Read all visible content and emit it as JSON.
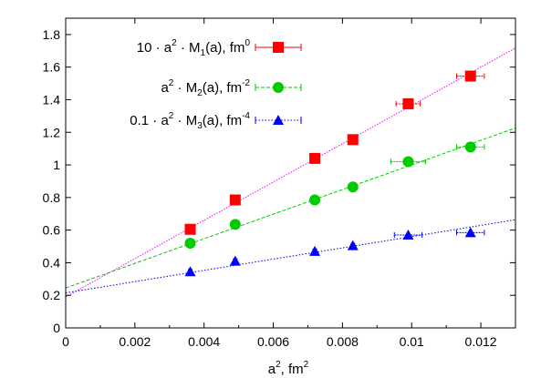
{
  "chart_data": {
    "type": "scatter",
    "xlabel": "a², fm²",
    "xlim": [
      0,
      0.013
    ],
    "ylim": [
      0,
      1.9
    ],
    "xticks": [
      0,
      0.002,
      0.004,
      0.006,
      0.008,
      0.01,
      0.012
    ],
    "xtick_labels": [
      "0",
      "0.002",
      "0.004",
      "0.006",
      "0.008",
      "0.01",
      "0.012"
    ],
    "yticks": [
      0,
      0.2,
      0.4,
      0.6,
      0.8,
      1,
      1.2,
      1.4,
      1.6,
      1.8
    ],
    "ytick_labels": [
      "0",
      "0.2",
      "0.4",
      "0.6",
      "0.8",
      "1",
      "1.2",
      "1.4",
      "1.6",
      "1.8"
    ],
    "legend_position": "top-left",
    "series": [
      {
        "legend": {
          "prefix": "10 · a",
          "exp1": "2",
          "mid": " · M",
          "sub": "1",
          "suffix": "(a), fm",
          "exp2": "0"
        },
        "color": "#ff0000",
        "fit_color": "#ff00ff",
        "marker": "square",
        "x": [
          0.0036,
          0.0049,
          0.0072,
          0.0083,
          0.0099,
          0.0117
        ],
        "y": [
          0.605,
          0.785,
          1.04,
          1.155,
          1.375,
          1.545
        ],
        "xerr": [
          5e-05,
          5e-05,
          5e-05,
          5e-05,
          0.00035,
          0.0004
        ],
        "fit": {
          "intercept": 0.19,
          "slope": 117.5
        }
      },
      {
        "legend": {
          "prefix": "a",
          "exp1": "2",
          "mid": " · M",
          "sub": "2",
          "suffix": "(a), fm",
          "exp2": "-2"
        },
        "color": "#00cc00",
        "fit_color": "#00cc00",
        "marker": "circle",
        "x": [
          0.0036,
          0.0049,
          0.0072,
          0.0083,
          0.0099,
          0.0117
        ],
        "y": [
          0.52,
          0.635,
          0.785,
          0.865,
          1.02,
          1.11
        ],
        "xerr": [
          5e-05,
          5e-05,
          5e-05,
          5e-05,
          0.0005,
          0.0004
        ],
        "fit": {
          "intercept": 0.245,
          "slope": 75.5
        }
      },
      {
        "legend": {
          "prefix": "0.1 · a",
          "exp1": "2",
          "mid": " · M",
          "sub": "3",
          "suffix": "(a), fm",
          "exp2": "-4"
        },
        "color": "#0000ff",
        "fit_color": "#0000dd",
        "marker": "triangle",
        "x": [
          0.0036,
          0.0049,
          0.0072,
          0.0083,
          0.0099,
          0.0117
        ],
        "y": [
          0.345,
          0.41,
          0.47,
          0.505,
          0.57,
          0.585
        ],
        "xerr": [
          5e-05,
          5e-05,
          5e-05,
          5e-05,
          0.0004,
          0.0004
        ],
        "fit": {
          "intercept": 0.215,
          "slope": 34.5
        }
      }
    ]
  }
}
